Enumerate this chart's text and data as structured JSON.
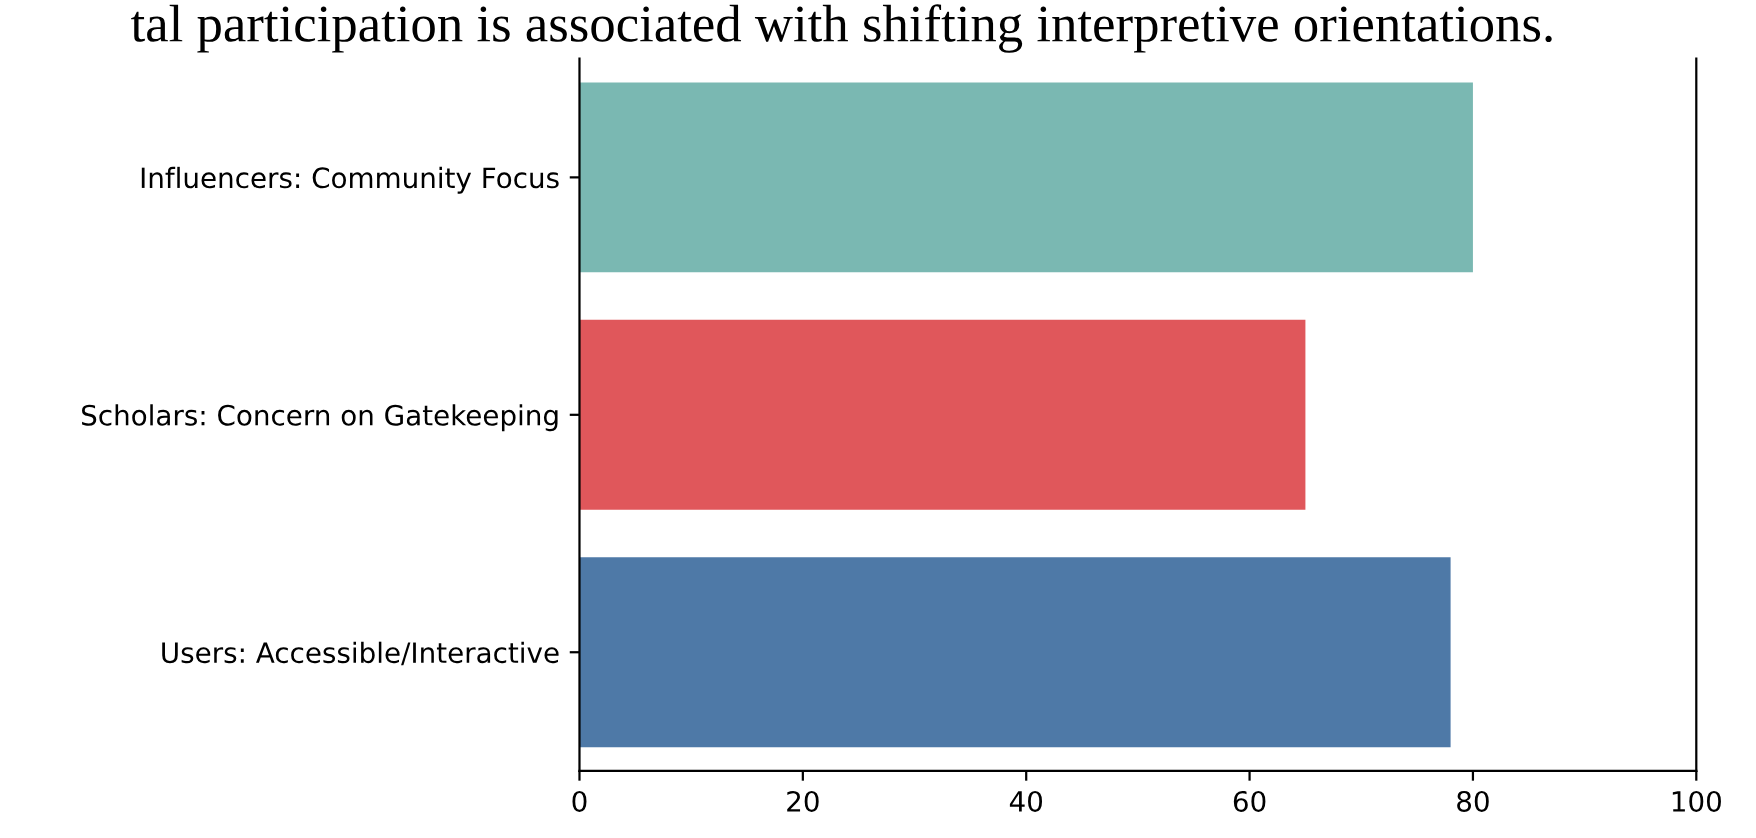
{
  "chart_data": {
    "type": "bar",
    "orientation": "horizontal",
    "title": "tal participation is associated with shifting interpretive orientations.",
    "categories": [
      "Influencers: Community Focus",
      "Scholars: Concern on Gatekeeping",
      "Users: Accessible/Interactive"
    ],
    "values": [
      80,
      65,
      78
    ],
    "colors": [
      "#7ab8b2",
      "#e0575b",
      "#4e79a7"
    ],
    "xlim": [
      0,
      100
    ],
    "xticks": [
      0,
      20,
      40,
      60,
      80,
      100
    ],
    "grid": false,
    "legend": false
  }
}
